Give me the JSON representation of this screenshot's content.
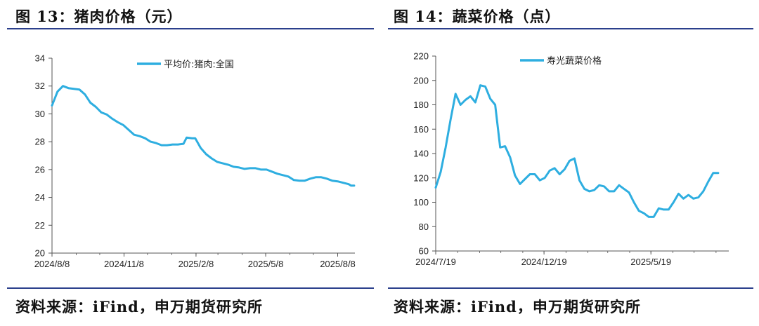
{
  "titles": {
    "left": "图 13：猪肉价格（元）",
    "right": "图 14：蔬菜价格（点）"
  },
  "sources": {
    "left": "资料来源：iFind，申万期货研究所",
    "right": "资料来源：iFind，申万期货研究所"
  },
  "colors": {
    "line": "#2eaee0",
    "rule": "#2b3f8c",
    "axis": "#555555"
  },
  "chart_data": [
    {
      "type": "line",
      "title": "图 13：猪肉价格（元）",
      "legend": "top-center",
      "grid": false,
      "ylim": [
        20,
        34
      ],
      "yticks": [
        20,
        22,
        24,
        26,
        28,
        30,
        32,
        34
      ],
      "xlim": [
        "2024-08-08",
        "2025-08-30"
      ],
      "xticks": [
        "2024/8/8",
        "2024/11/8",
        "2025/2/8",
        "2025/5/8",
        "2025/8/8"
      ],
      "series": [
        {
          "name": "平均价:猪肉:全国",
          "points": [
            [
              "2024-08-08",
              30.6
            ],
            [
              "2024-08-15",
              31.6
            ],
            [
              "2024-08-22",
              32.0
            ],
            [
              "2024-08-29",
              31.85
            ],
            [
              "2024-09-05",
              31.8
            ],
            [
              "2024-09-12",
              31.75
            ],
            [
              "2024-09-19",
              31.4
            ],
            [
              "2024-09-26",
              30.8
            ],
            [
              "2024-10-03",
              30.5
            ],
            [
              "2024-10-10",
              30.1
            ],
            [
              "2024-10-17",
              29.95
            ],
            [
              "2024-10-24",
              29.65
            ],
            [
              "2024-10-31",
              29.4
            ],
            [
              "2024-11-07",
              29.2
            ],
            [
              "2024-11-14",
              28.85
            ],
            [
              "2024-11-21",
              28.5
            ],
            [
              "2024-11-28",
              28.4
            ],
            [
              "2024-12-05",
              28.25
            ],
            [
              "2024-12-12",
              28.0
            ],
            [
              "2024-12-19",
              27.9
            ],
            [
              "2024-12-26",
              27.75
            ],
            [
              "2025-01-02",
              27.75
            ],
            [
              "2025-01-09",
              27.8
            ],
            [
              "2025-01-16",
              27.8
            ],
            [
              "2025-01-23",
              27.85
            ],
            [
              "2025-01-27",
              28.3
            ],
            [
              "2025-02-03",
              28.25
            ],
            [
              "2025-02-07",
              28.25
            ],
            [
              "2025-02-14",
              27.55
            ],
            [
              "2025-02-21",
              27.1
            ],
            [
              "2025-02-28",
              26.8
            ],
            [
              "2025-03-07",
              26.55
            ],
            [
              "2025-03-14",
              26.45
            ],
            [
              "2025-03-21",
              26.35
            ],
            [
              "2025-03-28",
              26.2
            ],
            [
              "2025-04-04",
              26.15
            ],
            [
              "2025-04-11",
              26.05
            ],
            [
              "2025-04-18",
              26.1
            ],
            [
              "2025-04-25",
              26.1
            ],
            [
              "2025-05-02",
              26.0
            ],
            [
              "2025-05-09",
              26.0
            ],
            [
              "2025-05-16",
              25.85
            ],
            [
              "2025-05-23",
              25.7
            ],
            [
              "2025-05-30",
              25.6
            ],
            [
              "2025-06-06",
              25.5
            ],
            [
              "2025-06-13",
              25.25
            ],
            [
              "2025-06-20",
              25.2
            ],
            [
              "2025-06-27",
              25.2
            ],
            [
              "2025-07-04",
              25.35
            ],
            [
              "2025-07-11",
              25.45
            ],
            [
              "2025-07-18",
              25.45
            ],
            [
              "2025-07-25",
              25.35
            ],
            [
              "2025-08-01",
              25.2
            ],
            [
              "2025-08-08",
              25.15
            ],
            [
              "2025-08-15",
              25.05
            ],
            [
              "2025-08-22",
              24.95
            ],
            [
              "2025-08-25",
              24.85
            ],
            [
              "2025-08-29",
              24.85
            ]
          ]
        }
      ]
    },
    {
      "type": "line",
      "title": "图 14：蔬菜价格（点）",
      "legend": "top-left",
      "grid": false,
      "ylim": [
        60,
        220
      ],
      "yticks": [
        60,
        80,
        100,
        120,
        140,
        160,
        180,
        200,
        220
      ],
      "xlim": [
        "2024-07-19",
        "2025-09-06"
      ],
      "xticks": [
        "2024/7/19",
        "2024/12/19",
        "2025/5/19"
      ],
      "series": [
        {
          "name": "寿光蔬菜价格",
          "points": [
            [
              "2024-07-19",
              112
            ],
            [
              "2024-07-26",
              125
            ],
            [
              "2024-08-02",
              145
            ],
            [
              "2024-08-09",
              168
            ],
            [
              "2024-08-16",
              189
            ],
            [
              "2024-08-23",
              180
            ],
            [
              "2024-08-30",
              184
            ],
            [
              "2024-09-06",
              187
            ],
            [
              "2024-09-13",
              182
            ],
            [
              "2024-09-20",
              196
            ],
            [
              "2024-09-27",
              195
            ],
            [
              "2024-10-04",
              185
            ],
            [
              "2024-10-11",
              180
            ],
            [
              "2024-10-18",
              145
            ],
            [
              "2024-10-25",
              146
            ],
            [
              "2024-11-01",
              137
            ],
            [
              "2024-11-08",
              122
            ],
            [
              "2024-11-15",
              115
            ],
            [
              "2024-11-22",
              119
            ],
            [
              "2024-11-29",
              123
            ],
            [
              "2024-12-06",
              123
            ],
            [
              "2024-12-13",
              118
            ],
            [
              "2024-12-20",
              120
            ],
            [
              "2024-12-27",
              126
            ],
            [
              "2025-01-03",
              128
            ],
            [
              "2025-01-10",
              123
            ],
            [
              "2025-01-17",
              127
            ],
            [
              "2025-01-24",
              134
            ],
            [
              "2025-01-31",
              136
            ],
            [
              "2025-02-07",
              118
            ],
            [
              "2025-02-14",
              111
            ],
            [
              "2025-02-21",
              109
            ],
            [
              "2025-02-28",
              110
            ],
            [
              "2025-03-07",
              114
            ],
            [
              "2025-03-14",
              113
            ],
            [
              "2025-03-21",
              109
            ],
            [
              "2025-03-28",
              109
            ],
            [
              "2025-04-04",
              114
            ],
            [
              "2025-04-11",
              111
            ],
            [
              "2025-04-18",
              108
            ],
            [
              "2025-04-25",
              100
            ],
            [
              "2025-05-02",
              93
            ],
            [
              "2025-05-09",
              91
            ],
            [
              "2025-05-16",
              88
            ],
            [
              "2025-05-23",
              88
            ],
            [
              "2025-05-30",
              95
            ],
            [
              "2025-06-06",
              94
            ],
            [
              "2025-06-13",
              94
            ],
            [
              "2025-06-20",
              100
            ],
            [
              "2025-06-27",
              107
            ],
            [
              "2025-07-04",
              103
            ],
            [
              "2025-07-11",
              106
            ],
            [
              "2025-07-18",
              103
            ],
            [
              "2025-07-25",
              104
            ],
            [
              "2025-08-01",
              109
            ],
            [
              "2025-08-08",
              117
            ],
            [
              "2025-08-15",
              124
            ],
            [
              "2025-08-22",
              124
            ]
          ]
        }
      ]
    }
  ]
}
